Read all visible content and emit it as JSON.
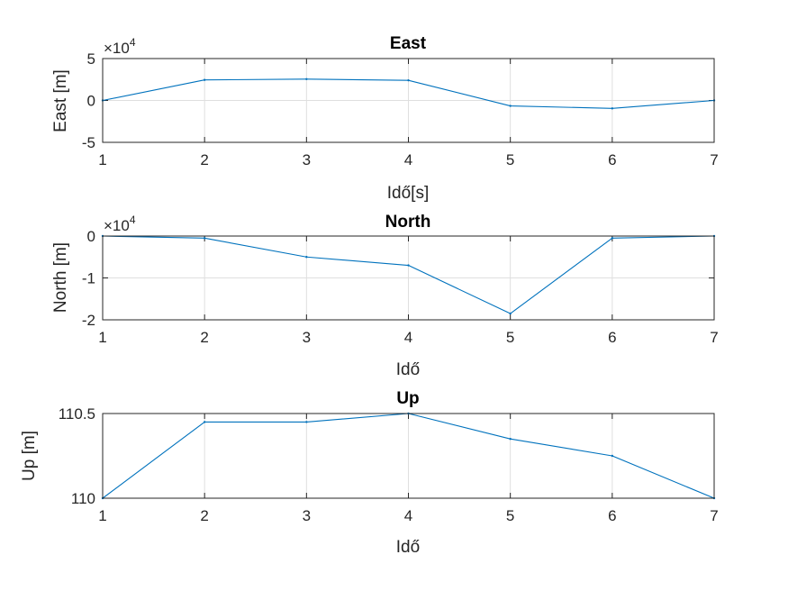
{
  "chart_data": [
    {
      "type": "line",
      "title": "East",
      "xlabel": "Idő[s]",
      "ylabel": "East [m]",
      "exponent": "4",
      "x": [
        1,
        2,
        3,
        4,
        5,
        6,
        7
      ],
      "series": [
        {
          "values": [
            0,
            24500,
            25500,
            24000,
            -6500,
            -9500,
            0
          ]
        }
      ],
      "xlim": [
        1,
        7
      ],
      "ylim": [
        -50000,
        50000
      ],
      "xticks": [
        "1",
        "2",
        "3",
        "4",
        "5",
        "6",
        "7"
      ],
      "yticks": [
        "-5",
        "0",
        "5"
      ],
      "grid": true,
      "color": "#0072BD"
    },
    {
      "type": "line",
      "title": "North",
      "xlabel": "Idő",
      "ylabel": "North [m]",
      "exponent": "4",
      "x": [
        1,
        2,
        3,
        4,
        5,
        6,
        7
      ],
      "series": [
        {
          "values": [
            0,
            -500,
            -5000,
            -7000,
            -18500,
            -500,
            0
          ]
        }
      ],
      "xlim": [
        1,
        7
      ],
      "ylim": [
        -20000,
        0
      ],
      "xticks": [
        "1",
        "2",
        "3",
        "4",
        "5",
        "6",
        "7"
      ],
      "yticks": [
        "-2",
        "-1",
        "0"
      ],
      "grid": true,
      "color": "#0072BD"
    },
    {
      "type": "line",
      "title": "Up",
      "xlabel": "Idő",
      "ylabel": "Up [m]",
      "x": [
        1,
        2,
        3,
        4,
        5,
        6,
        7
      ],
      "series": [
        {
          "values": [
            110,
            110.45,
            110.45,
            110.5,
            110.35,
            110.25,
            110
          ]
        }
      ],
      "xlim": [
        1,
        7
      ],
      "ylim": [
        110,
        110.5
      ],
      "xticks": [
        "1",
        "2",
        "3",
        "4",
        "5",
        "6",
        "7"
      ],
      "yticks": [
        "110",
        "110.5"
      ],
      "grid": true,
      "color": "#0072BD"
    }
  ]
}
